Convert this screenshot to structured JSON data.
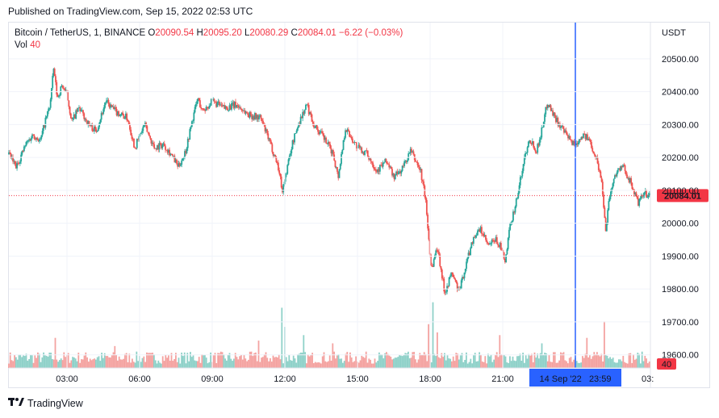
{
  "header": {
    "published": "Published on TradingView.com, Sep 15, 2022 02:53 UTC"
  },
  "legend": {
    "symbol": "Bitcoin / TetherUS, 1, BINANCE",
    "o_label": "O",
    "o_value": "20090.54",
    "h_label": "H",
    "h_value": "20095.20",
    "l_label": "L",
    "l_value": "20080.29",
    "c_label": "C",
    "c_value": "20084.01",
    "change": "−6.22 (−0.03%)",
    "vol_label": "Vol",
    "vol_value": "40"
  },
  "footer": {
    "brand": "TradingView"
  },
  "colors": {
    "up": "#26a69a",
    "down": "#ef5350",
    "vol_up": "#8fd1c9",
    "vol_down": "#f4a3a1",
    "crosshair": "#2962ff",
    "price_label": "#f23645"
  },
  "chart_data": {
    "type": "candlestick",
    "symbol": "Bitcoin / TetherUS",
    "interval": "1",
    "exchange": "BINANCE",
    "currency": "USDT",
    "ylim": [
      19560,
      20610
    ],
    "y_ticks": [
      "20500.00",
      "20400.00",
      "20300.00",
      "20200.00",
      "20100.00",
      "20000.00",
      "19900.00",
      "19800.00",
      "19700.00",
      "19600.00"
    ],
    "x_ticks": [
      "03:00",
      "06:00",
      "09:00",
      "12:00",
      "15:00",
      "18:00",
      "21:00",
      "03:"
    ],
    "x_range_hours": [
      0.6,
      27.1
    ],
    "last_price": "20084.01",
    "last_volume": "40",
    "crosshair": {
      "time_hours": 24.0,
      "label": "14 Sep '22   23:59"
    },
    "path": [
      [
        0.6,
        20210
      ],
      [
        0.9,
        20170
      ],
      [
        1.3,
        20240
      ],
      [
        1.6,
        20270
      ],
      [
        1.9,
        20250
      ],
      [
        2.1,
        20310
      ],
      [
        2.3,
        20360
      ],
      [
        2.45,
        20470
      ],
      [
        2.6,
        20380
      ],
      [
        2.8,
        20420
      ],
      [
        3.0,
        20390
      ],
      [
        3.2,
        20310
      ],
      [
        3.5,
        20350
      ],
      [
        3.9,
        20300
      ],
      [
        4.2,
        20280
      ],
      [
        4.6,
        20370
      ],
      [
        5.0,
        20340
      ],
      [
        5.5,
        20320
      ],
      [
        5.8,
        20230
      ],
      [
        6.2,
        20300
      ],
      [
        6.6,
        20230
      ],
      [
        7.0,
        20240
      ],
      [
        7.3,
        20210
      ],
      [
        7.6,
        20170
      ],
      [
        7.9,
        20220
      ],
      [
        8.2,
        20320
      ],
      [
        8.4,
        20380
      ],
      [
        8.6,
        20340
      ],
      [
        9.0,
        20370
      ],
      [
        9.5,
        20350
      ],
      [
        10.0,
        20360
      ],
      [
        10.5,
        20330
      ],
      [
        11.0,
        20320
      ],
      [
        11.4,
        20240
      ],
      [
        11.7,
        20180
      ],
      [
        11.9,
        20100
      ],
      [
        12.3,
        20240
      ],
      [
        12.6,
        20310
      ],
      [
        12.9,
        20360
      ],
      [
        13.2,
        20300
      ],
      [
        13.6,
        20260
      ],
      [
        14.0,
        20210
      ],
      [
        14.2,
        20140
      ],
      [
        14.5,
        20290
      ],
      [
        15.0,
        20230
      ],
      [
        15.4,
        20210
      ],
      [
        15.8,
        20160
      ],
      [
        16.2,
        20190
      ],
      [
        16.5,
        20140
      ],
      [
        16.8,
        20160
      ],
      [
        17.2,
        20220
      ],
      [
        17.6,
        20160
      ],
      [
        17.8,
        20080
      ],
      [
        18.05,
        19860
      ],
      [
        18.3,
        19930
      ],
      [
        18.6,
        19790
      ],
      [
        18.9,
        19850
      ],
      [
        19.2,
        19790
      ],
      [
        19.5,
        19880
      ],
      [
        19.8,
        19960
      ],
      [
        20.1,
        19980
      ],
      [
        20.4,
        19930
      ],
      [
        20.7,
        19950
      ],
      [
        20.9,
        19930
      ],
      [
        21.1,
        19880
      ],
      [
        21.3,
        19990
      ],
      [
        21.6,
        20080
      ],
      [
        21.9,
        20200
      ],
      [
        22.1,
        20260
      ],
      [
        22.4,
        20220
      ],
      [
        22.6,
        20280
      ],
      [
        22.85,
        20370
      ],
      [
        23.1,
        20330
      ],
      [
        23.5,
        20280
      ],
      [
        23.8,
        20250
      ],
      [
        24.0,
        20240
      ],
      [
        24.3,
        20270
      ],
      [
        24.6,
        20250
      ],
      [
        24.9,
        20190
      ],
      [
        25.1,
        20120
      ],
      [
        25.25,
        19980
      ],
      [
        25.4,
        20080
      ],
      [
        25.7,
        20160
      ],
      [
        26.0,
        20170
      ],
      [
        26.3,
        20120
      ],
      [
        26.6,
        20060
      ],
      [
        26.85,
        20090
      ],
      [
        27.1,
        20084
      ]
    ],
    "volume_spikes": [
      [
        11.9,
        110
      ],
      [
        12.0,
        75
      ],
      [
        17.95,
        80
      ],
      [
        18.1,
        120
      ],
      [
        18.3,
        65
      ],
      [
        12.8,
        60
      ],
      [
        10.9,
        50
      ],
      [
        14.0,
        45
      ],
      [
        25.2,
        85
      ],
      [
        20.9,
        60
      ],
      [
        2.5,
        55
      ],
      [
        5.0,
        40
      ],
      [
        24.5,
        55
      ],
      [
        22.6,
        45
      ]
    ],
    "volume_ylim": [
      0,
      140
    ]
  }
}
